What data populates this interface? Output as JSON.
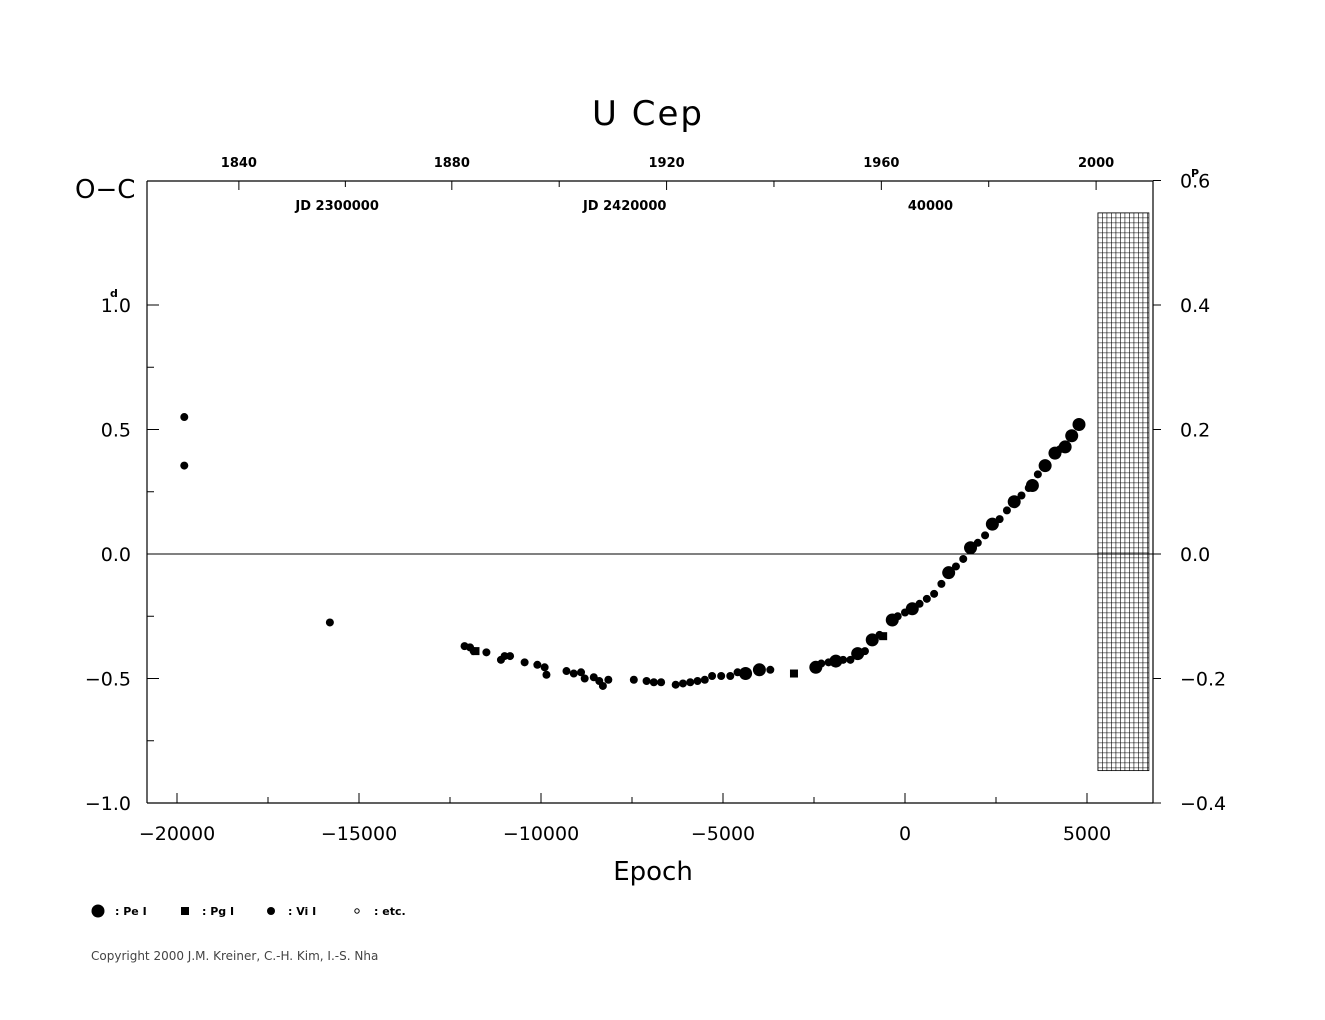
{
  "chart_data": {
    "type": "scatter",
    "title": "U  Cep",
    "xlabel": "Epoch",
    "ylabel": "O−C",
    "y_unit_left": "d",
    "y_unit_right": "P",
    "xlim": [
      -20700,
      6800
    ],
    "ylim": [
      -1.0,
      1.0
    ],
    "y2lim": [
      -0.4,
      0.6
    ],
    "grid": false,
    "zero_line": true,
    "x_ticks": [
      {
        "value": -20000,
        "label": "−20000"
      },
      {
        "value": -15000,
        "label": "−15000"
      },
      {
        "value": -10000,
        "label": "−10000"
      },
      {
        "value": -5000,
        "label": "−5000"
      },
      {
        "value": 0,
        "label": "0"
      },
      {
        "value": 5000,
        "label": "5000"
      }
    ],
    "y_ticks": [
      {
        "value": -1.0,
        "label": "−1.0"
      },
      {
        "value": -0.5,
        "label": "−0.5"
      },
      {
        "value": 0.0,
        "label": "0.0"
      },
      {
        "value": 0.5,
        "label": "0.5"
      },
      {
        "value": 1.0,
        "label": "1.0"
      }
    ],
    "y2_ticks": [
      {
        "value": -0.4,
        "label": "−0.4"
      },
      {
        "value": -0.2,
        "label": "−0.2"
      },
      {
        "value": 0.0,
        "label": "0.0"
      },
      {
        "value": 0.2,
        "label": "0.2"
      },
      {
        "value": 0.4,
        "label": "0.4"
      },
      {
        "value": 0.6,
        "label": "0.6"
      }
    ],
    "top_year_ticks": [
      {
        "epoch": -18300,
        "label": "1840"
      },
      {
        "epoch": -12450,
        "label": "1880"
      },
      {
        "epoch": -6550,
        "label": "1920"
      },
      {
        "epoch": -650,
        "label": "1960"
      },
      {
        "epoch": 5250,
        "label": "2000"
      }
    ],
    "jd_labels": [
      {
        "epoch": -15600,
        "label": "JD 2300000"
      },
      {
        "epoch": -7700,
        "label": "JD 2420000"
      },
      {
        "epoch": 700,
        "label": "40000"
      }
    ],
    "hatched_region": {
      "x_from": 5300,
      "x_to": 6700,
      "y_from": -0.87,
      "y_to": 1.37
    },
    "series": [
      {
        "name": "Pe I",
        "marker": "large-circle",
        "points": [
          [
            -4380,
            -0.48
          ],
          [
            -4000,
            -0.465
          ],
          [
            -2450,
            -0.455
          ],
          [
            -1900,
            -0.43
          ],
          [
            -1300,
            -0.4
          ],
          [
            -900,
            -0.345
          ],
          [
            -350,
            -0.265
          ],
          [
            200,
            -0.22
          ],
          [
            1200,
            -0.075
          ],
          [
            1800,
            0.025
          ],
          [
            2400,
            0.12
          ],
          [
            3000,
            0.21
          ],
          [
            3500,
            0.275
          ],
          [
            3850,
            0.355
          ],
          [
            4120,
            0.405
          ],
          [
            4400,
            0.43
          ],
          [
            4580,
            0.475
          ],
          [
            4780,
            0.52
          ]
        ]
      },
      {
        "name": "Pg I",
        "marker": "square",
        "points": [
          [
            -11800,
            -0.39
          ],
          [
            -3050,
            -0.48
          ],
          [
            -1900,
            -0.43
          ],
          [
            -600,
            -0.33
          ]
        ]
      },
      {
        "name": "Vi I",
        "marker": "small-circle",
        "points": [
          [
            -19800,
            0.55
          ],
          [
            -19800,
            0.355
          ],
          [
            -15800,
            -0.275
          ],
          [
            -12100,
            -0.37
          ],
          [
            -11950,
            -0.375
          ],
          [
            -11850,
            -0.39
          ],
          [
            -11500,
            -0.395
          ],
          [
            -11100,
            -0.425
          ],
          [
            -11000,
            -0.41
          ],
          [
            -10850,
            -0.41
          ],
          [
            -10450,
            -0.435
          ],
          [
            -10100,
            -0.445
          ],
          [
            -9900,
            -0.455
          ],
          [
            -9850,
            -0.485
          ],
          [
            -9300,
            -0.47
          ],
          [
            -9100,
            -0.48
          ],
          [
            -8900,
            -0.475
          ],
          [
            -8800,
            -0.5
          ],
          [
            -8550,
            -0.495
          ],
          [
            -8400,
            -0.51
          ],
          [
            -8300,
            -0.53
          ],
          [
            -8150,
            -0.505
          ],
          [
            -7450,
            -0.505
          ],
          [
            -7100,
            -0.51
          ],
          [
            -6900,
            -0.515
          ],
          [
            -6700,
            -0.515
          ],
          [
            -6300,
            -0.525
          ],
          [
            -6100,
            -0.52
          ],
          [
            -5900,
            -0.515
          ],
          [
            -5700,
            -0.51
          ],
          [
            -5500,
            -0.505
          ],
          [
            -5300,
            -0.49
          ],
          [
            -5050,
            -0.49
          ],
          [
            -4800,
            -0.49
          ],
          [
            -4600,
            -0.475
          ],
          [
            -3700,
            -0.465
          ],
          [
            -2300,
            -0.44
          ],
          [
            -2100,
            -0.435
          ],
          [
            -1700,
            -0.425
          ],
          [
            -1500,
            -0.425
          ],
          [
            -1100,
            -0.39
          ],
          [
            -700,
            -0.325
          ],
          [
            -200,
            -0.25
          ],
          [
            0,
            -0.235
          ],
          [
            400,
            -0.2
          ],
          [
            600,
            -0.18
          ],
          [
            800,
            -0.16
          ],
          [
            1000,
            -0.12
          ],
          [
            1400,
            -0.05
          ],
          [
            1600,
            -0.02
          ],
          [
            2000,
            0.045
          ],
          [
            2200,
            0.075
          ],
          [
            2600,
            0.14
          ],
          [
            2800,
            0.175
          ],
          [
            3200,
            0.235
          ],
          [
            3400,
            0.265
          ],
          [
            3650,
            0.32
          ],
          [
            4250,
            0.42
          ]
        ]
      }
    ]
  },
  "legend": [
    {
      "marker": "large-circle",
      "label": ": Pe I"
    },
    {
      "marker": "square",
      "label": ": Pg I"
    },
    {
      "marker": "small-circle",
      "label": ": Vi I"
    },
    {
      "marker": "open-circle",
      "label": ": etc."
    }
  ],
  "footer": {
    "copyright": "Copyright 2000 J.M. Kreiner, C.-H. Kim, I.-S. Nha"
  }
}
